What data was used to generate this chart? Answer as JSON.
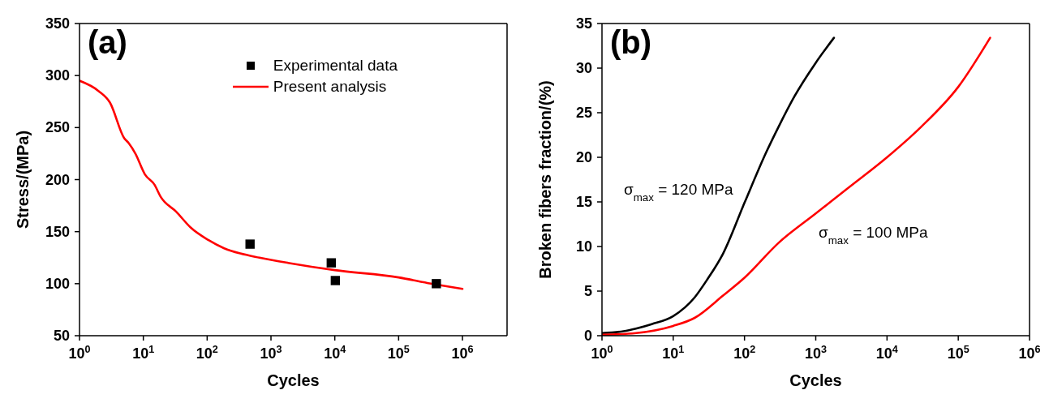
{
  "chart_data": [
    {
      "type": "line",
      "xlabel": "Cycles",
      "ylabel": "Stress/(MPa)",
      "log": "x",
      "grid": false,
      "legend": "top right",
      "xlim": [
        1,
        5000000
      ],
      "xticks": [
        {
          "value": 1,
          "label": "10$^{0}$"
        },
        {
          "value": 10,
          "label": "10$^{1}$"
        },
        {
          "value": 100,
          "label": "10$^{2}$"
        },
        {
          "value": 1000,
          "label": "10$^{3}$"
        },
        {
          "value": 10000,
          "label": "10$^{4}$"
        },
        {
          "value": 100000,
          "label": "10$^{5}$"
        },
        {
          "value": 1000000,
          "label": "10$^{6}$"
        }
      ],
      "ylim": [
        50,
        350
      ],
      "yticks": [
        50,
        100,
        150,
        200,
        250,
        300,
        350
      ],
      "annotations": [
        "(a)"
      ],
      "series": [
        {
          "name": "Experimental data",
          "type": "scatter",
          "marker": "square",
          "color": "#000000",
          "x": [
            470,
            8800,
            10200,
            390000
          ],
          "values": [
            138,
            120,
            103,
            100
          ]
        },
        {
          "name": "Present analysis",
          "type": "line",
          "marker": "none",
          "line_style": "solid",
          "color": "#ff0000",
          "x": [
            1,
            2,
            3,
            5,
            5.9,
            7.5,
            10.6,
            15,
            18.5,
            33,
            55,
            104,
            185,
            330,
            660,
            1850,
            10000,
            100000,
            320000,
            1000000
          ],
          "values": [
            295,
            285,
            274,
            240,
            235,
            225,
            205,
            195,
            184,
            169,
            154,
            142,
            134,
            129,
            125,
            120,
            113,
            106,
            100,
            95
          ]
        }
      ]
    },
    {
      "type": "line",
      "xlabel": "Cycles",
      "ylabel": "Broken fibers fraction/(%)",
      "log": "x",
      "grid": false,
      "xlim": [
        1,
        1000000
      ],
      "xticks": [
        {
          "value": 1,
          "label": "10$^{0}$"
        },
        {
          "value": 10,
          "label": "10$^{1}$"
        },
        {
          "value": 100,
          "label": "10$^{2}$"
        },
        {
          "value": 1000,
          "label": "10$^{3}$"
        },
        {
          "value": 10000,
          "label": "10$^{4}$"
        },
        {
          "value": 100000,
          "label": "10$^{5}$"
        },
        {
          "value": 1000000,
          "label": "10$^{6}$"
        }
      ],
      "ylim": [
        0,
        35
      ],
      "yticks": [
        0,
        5,
        10,
        15,
        20,
        25,
        30,
        35
      ],
      "annotations": [
        "(b)",
        "σ$_{max}$ = 120 MPa",
        "σ$_{max}$ = 100 MPa"
      ],
      "series": [
        {
          "type": "line",
          "marker": "none",
          "line_style": "solid",
          "color": "#000000",
          "x": [
            1,
            2,
            3,
            5,
            10,
            20,
            30,
            50,
            100,
            200,
            300,
            500,
            1000,
            1800
          ],
          "values": [
            0.3,
            0.5,
            0.8,
            1.3,
            2.2,
            4.3,
            6.3,
            9.2,
            14.9,
            20.5,
            23.4,
            26.8,
            30.6,
            33.4
          ]
        },
        {
          "type": "line",
          "marker": "none",
          "line_style": "solid",
          "color": "#ff0000",
          "x": [
            1,
            3,
            10,
            20,
            50,
            100,
            300,
            1000,
            3000,
            10000,
            30000,
            100000,
            280000
          ],
          "values": [
            0.1,
            0.3,
            1.1,
            2,
            4.5,
            6.5,
            10.4,
            13.7,
            16.7,
            20,
            23.4,
            27.9,
            33.4
          ]
        }
      ]
    }
  ]
}
